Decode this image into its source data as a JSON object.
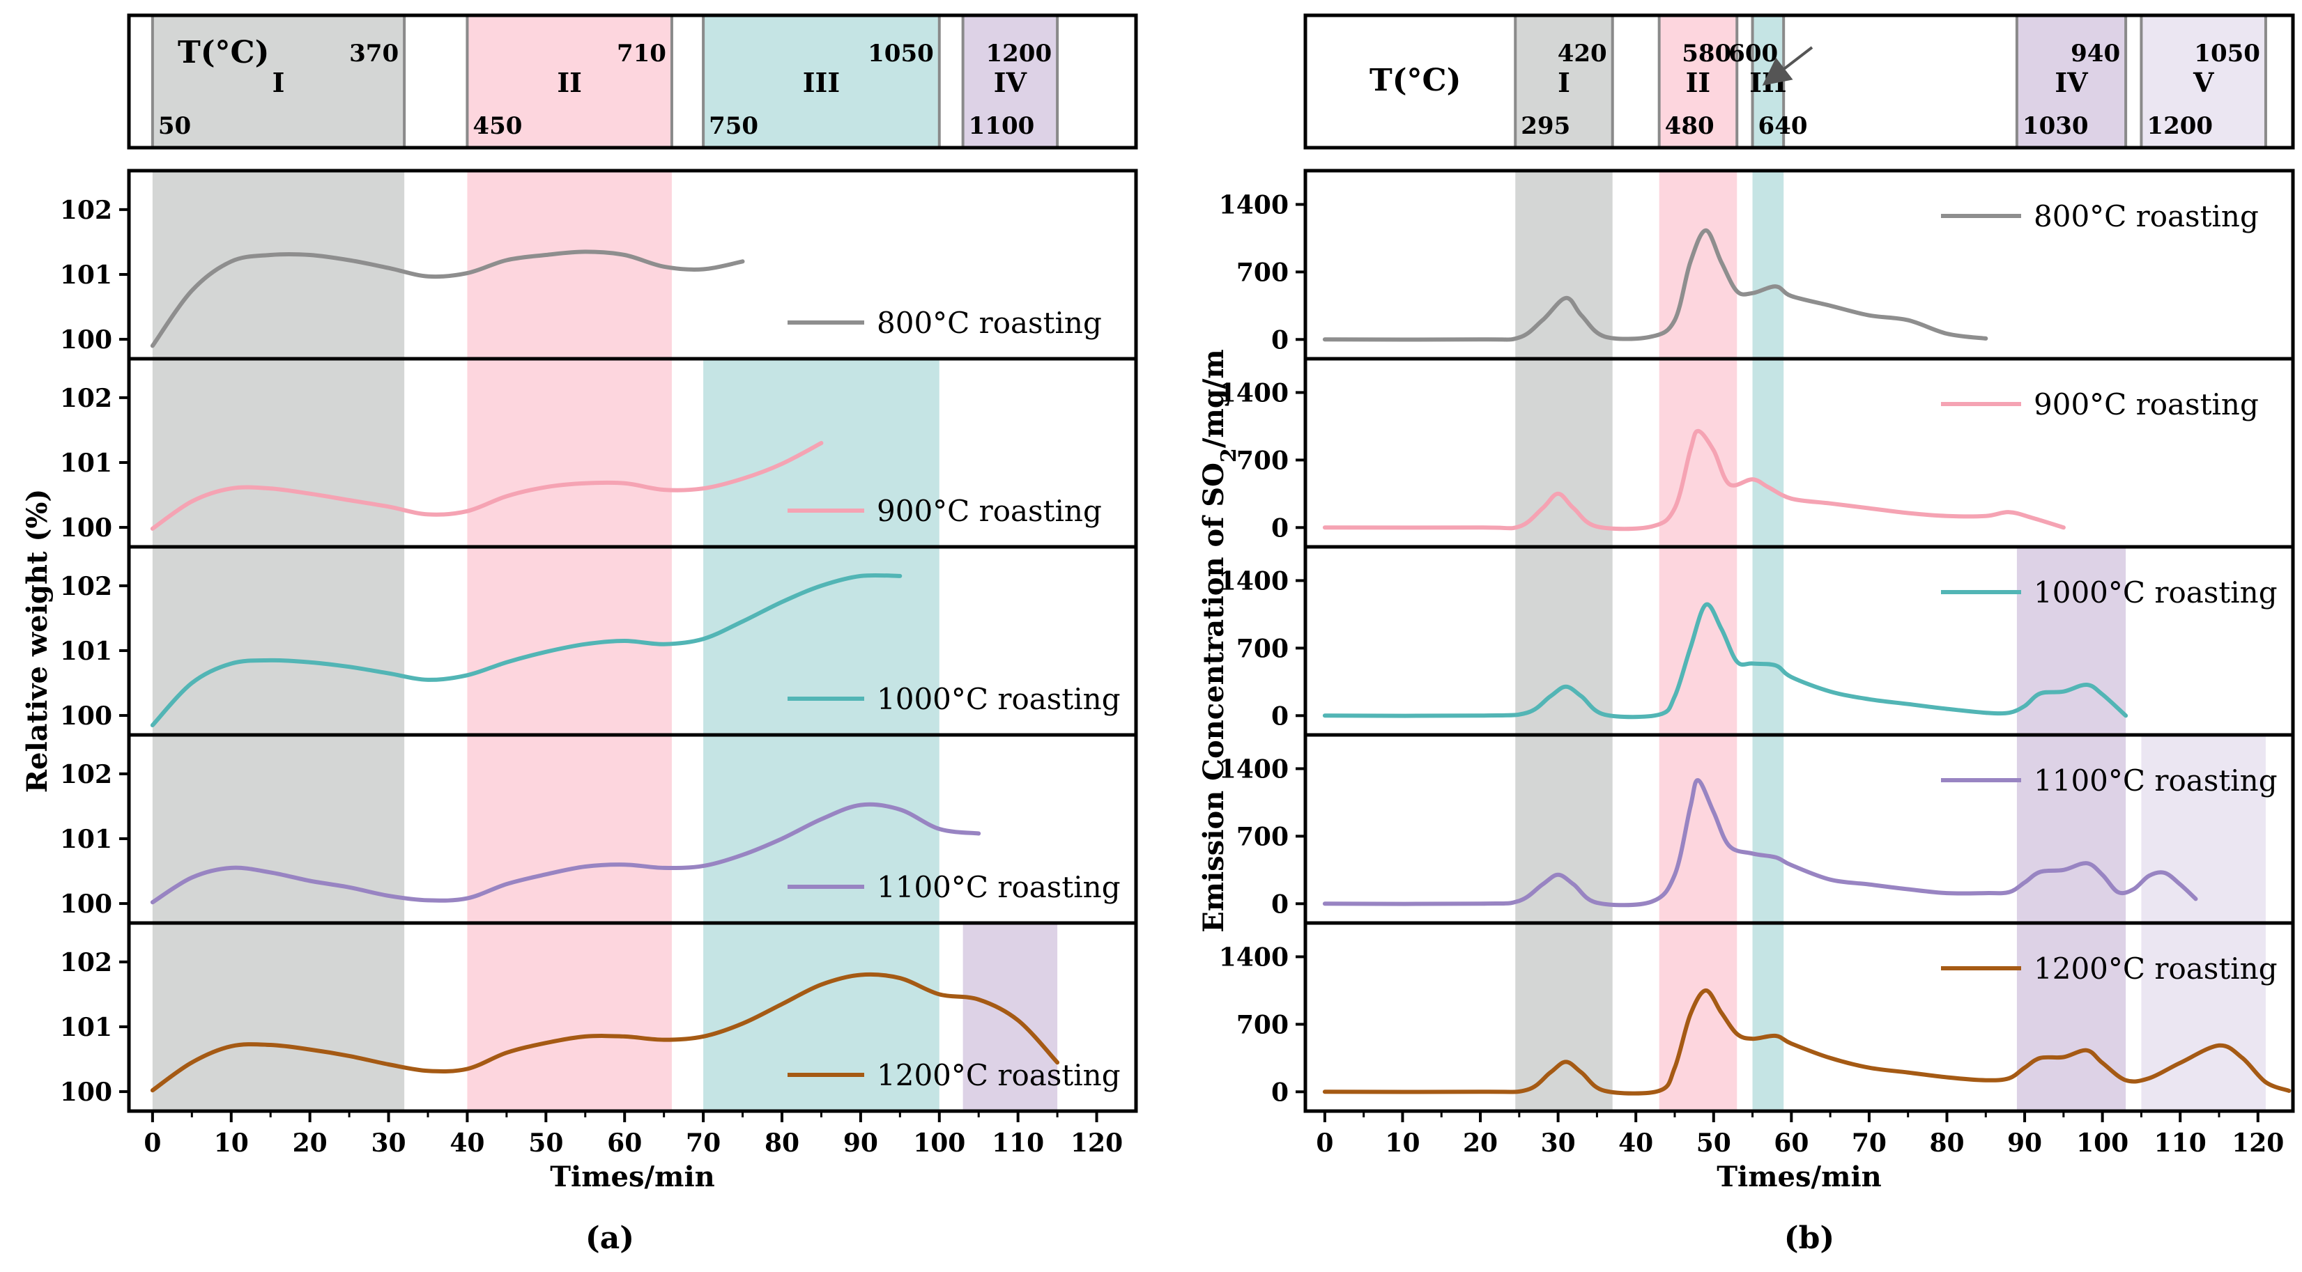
{
  "figure": {
    "label_a": "(a)",
    "label_b": "(b)"
  },
  "colors": {
    "band_I": "#d4d6d5",
    "band_II": "#fdd6de",
    "band_III": "#c5e4e4",
    "band_IV": "#ddd2e6",
    "band_V": "#ebe6f2",
    "s800": "#8e8e8e",
    "s900": "#f5a3b3",
    "s1000": "#52b5b5",
    "s1100": "#9884c2",
    "s1200": "#a55a14"
  },
  "panel_a": {
    "temp_label": "T(°C)",
    "stages": [
      {
        "roman": "I",
        "t_start": "50",
        "t_end": "370",
        "x0": 0,
        "x1": 32,
        "color": "band_I"
      },
      {
        "roman": "II",
        "t_start": "450",
        "t_end": "710",
        "x0": 40,
        "x1": 66,
        "color": "band_II"
      },
      {
        "roman": "III",
        "t_start": "750",
        "t_end": "1050",
        "x0": 70,
        "x1": 100,
        "color": "band_III"
      },
      {
        "roman": "IV",
        "t_start": "1100",
        "t_end": "1200",
        "x0": 103,
        "x1": 115,
        "color": "band_IV"
      }
    ]
  },
  "panel_b": {
    "temp_label": "T(°C)",
    "stages": [
      {
        "roman": "I",
        "t_start": "295",
        "t_end": "420",
        "x0": 24.5,
        "x1": 37,
        "color": "band_I"
      },
      {
        "roman": "II",
        "t_start": "480",
        "t_end": "580",
        "x0": 43,
        "x1": 53,
        "color": "band_II"
      },
      {
        "roman": "III",
        "t_start": "640",
        "t_end": "600",
        "x0": 55,
        "x1": 59,
        "color": "band_III"
      },
      {
        "roman": "IV",
        "t_start": "1030",
        "t_end": "940",
        "x0": 89,
        "x1": 103,
        "color": "band_IV"
      },
      {
        "roman": "V",
        "t_start": "1200",
        "t_end": "1050",
        "x0": 105,
        "x1": 121,
        "color": "band_V"
      }
    ]
  },
  "chart_data": [
    {
      "type": "line",
      "title": "(a)",
      "xlabel": "Times/min",
      "ylabel": "Relative weight (%)",
      "xlim": [
        -3,
        125
      ],
      "xticks": [
        0,
        10,
        20,
        30,
        40,
        50,
        60,
        70,
        80,
        90,
        100,
        110,
        120
      ],
      "ylim": [
        99.7,
        102.6
      ],
      "yticks": [
        100,
        101,
        102
      ],
      "subplots": [
        {
          "name": "800°C roasting",
          "color": "s800",
          "bands": [
            0,
            1
          ],
          "x": [
            0,
            5,
            10,
            15,
            20,
            25,
            30,
            35,
            40,
            45,
            50,
            55,
            60,
            65,
            70,
            75
          ],
          "y": [
            99.9,
            100.75,
            101.2,
            101.3,
            101.3,
            101.22,
            101.1,
            100.97,
            101.02,
            101.22,
            101.3,
            101.35,
            101.3,
            101.12,
            101.08,
            101.2
          ]
        },
        {
          "name": "900°C roasting",
          "color": "s900",
          "bands": [
            0,
            1,
            2
          ],
          "x": [
            0,
            5,
            10,
            15,
            20,
            25,
            30,
            35,
            40,
            45,
            50,
            55,
            60,
            65,
            70,
            75,
            80,
            85
          ],
          "y": [
            99.98,
            100.4,
            100.6,
            100.6,
            100.52,
            100.42,
            100.32,
            100.2,
            100.25,
            100.48,
            100.62,
            100.68,
            100.68,
            100.58,
            100.6,
            100.75,
            100.98,
            101.3
          ]
        },
        {
          "name": "1000°C roasting",
          "color": "s1000",
          "bands": [
            0,
            1,
            2
          ],
          "x": [
            0,
            5,
            10,
            15,
            20,
            25,
            30,
            35,
            40,
            45,
            50,
            55,
            60,
            65,
            70,
            75,
            80,
            85,
            90,
            95
          ],
          "y": [
            99.85,
            100.5,
            100.8,
            100.85,
            100.82,
            100.75,
            100.65,
            100.55,
            100.62,
            100.82,
            100.98,
            101.1,
            101.15,
            101.1,
            101.18,
            101.45,
            101.75,
            102.0,
            102.15,
            102.15
          ]
        },
        {
          "name": "1100°C roasting",
          "color": "s1100",
          "bands": [
            0,
            1,
            2
          ],
          "x": [
            0,
            5,
            10,
            15,
            20,
            25,
            30,
            35,
            40,
            45,
            50,
            55,
            60,
            65,
            70,
            75,
            80,
            85,
            90,
            95,
            100,
            105
          ],
          "y": [
            100.02,
            100.4,
            100.55,
            100.48,
            100.35,
            100.25,
            100.12,
            100.05,
            100.08,
            100.3,
            100.45,
            100.57,
            100.6,
            100.55,
            100.58,
            100.75,
            101.0,
            101.3,
            101.52,
            101.45,
            101.15,
            101.08
          ]
        },
        {
          "name": "1200°C roasting",
          "color": "s1200",
          "bands": [
            0,
            1,
            2,
            3
          ],
          "x": [
            0,
            5,
            10,
            15,
            20,
            25,
            30,
            35,
            40,
            45,
            50,
            55,
            60,
            65,
            70,
            75,
            80,
            85,
            90,
            95,
            100,
            105,
            110,
            115
          ],
          "y": [
            100.02,
            100.45,
            100.7,
            100.72,
            100.65,
            100.55,
            100.42,
            100.32,
            100.35,
            100.6,
            100.75,
            100.85,
            100.85,
            100.8,
            100.85,
            101.05,
            101.35,
            101.65,
            101.8,
            101.75,
            101.5,
            101.42,
            101.1,
            100.45
          ]
        }
      ]
    },
    {
      "type": "line",
      "title": "(b)",
      "xlabel": "Times/min",
      "ylabel": "Emission Concentration of SO",
      "ylabel_sub": "2",
      "ylabel_tail": "/mg/m",
      "xlim": [
        -2.5,
        124.5
      ],
      "xticks": [
        0,
        10,
        20,
        30,
        40,
        50,
        60,
        70,
        80,
        90,
        100,
        110,
        120
      ],
      "ylim": [
        -200,
        1750
      ],
      "yticks": [
        0,
        700,
        1400
      ],
      "subplots": [
        {
          "name": "800°C roasting",
          "color": "s800",
          "bands": [
            0,
            1,
            2
          ],
          "x": [
            0,
            20,
            25,
            28,
            31,
            33,
            36,
            42,
            45,
            47,
            49,
            51,
            53,
            55,
            58,
            60,
            65,
            70,
            75,
            80,
            85
          ],
          "y": [
            0,
            0,
            20,
            200,
            430,
            250,
            30,
            30,
            200,
            800,
            1130,
            800,
            500,
            480,
            550,
            450,
            350,
            250,
            200,
            60,
            10
          ]
        },
        {
          "name": "900°C roasting",
          "color": "s900",
          "bands": [
            0,
            1,
            2
          ],
          "x": [
            0,
            20,
            25,
            28,
            30,
            32,
            35,
            42,
            45,
            47,
            48,
            50,
            52,
            55,
            57,
            60,
            65,
            70,
            75,
            80,
            85,
            88,
            91,
            95
          ],
          "y": [
            0,
            0,
            10,
            200,
            350,
            200,
            10,
            10,
            200,
            800,
            1000,
            800,
            450,
            500,
            420,
            300,
            250,
            200,
            150,
            120,
            120,
            160,
            100,
            0
          ]
        },
        {
          "name": "1000°C roasting",
          "color": "s1000",
          "bands": [
            0,
            1,
            2,
            3
          ],
          "x": [
            0,
            20,
            26,
            29,
            31,
            33,
            36,
            43,
            45,
            47,
            49,
            51,
            53,
            55,
            58,
            60,
            65,
            70,
            75,
            80,
            85,
            88,
            90,
            92,
            95,
            98,
            100,
            103
          ],
          "y": [
            0,
            0,
            30,
            200,
            300,
            200,
            10,
            10,
            200,
            700,
            1150,
            900,
            560,
            540,
            520,
            400,
            250,
            170,
            120,
            70,
            30,
            30,
            100,
            230,
            250,
            320,
            220,
            0
          ]
        },
        {
          "name": "1100°C roasting",
          "color": "s1100",
          "bands": [
            0,
            1,
            2,
            3,
            4
          ],
          "x": [
            0,
            20,
            25,
            28,
            30,
            32,
            35,
            42,
            45,
            47,
            48,
            50,
            52,
            55,
            58,
            60,
            65,
            70,
            75,
            80,
            85,
            88,
            90,
            92,
            95,
            98,
            100,
            102,
            104,
            106,
            108,
            110,
            112
          ],
          "y": [
            0,
            0,
            30,
            200,
            300,
            200,
            10,
            20,
            300,
            1000,
            1280,
            950,
            600,
            520,
            480,
            400,
            250,
            200,
            150,
            110,
            110,
            120,
            220,
            330,
            350,
            420,
            300,
            120,
            150,
            290,
            320,
            200,
            50
          ]
        },
        {
          "name": "1200°C roasting",
          "color": "s1200",
          "bands": [
            0,
            1,
            2,
            3,
            4
          ],
          "x": [
            0,
            20,
            26,
            29,
            31,
            33,
            36,
            43,
            45,
            47,
            49,
            51,
            53,
            55,
            58,
            60,
            65,
            70,
            75,
            80,
            85,
            88,
            90,
            92,
            95,
            98,
            100,
            103,
            106,
            110,
            115,
            118,
            121,
            124
          ],
          "y": [
            0,
            0,
            20,
            200,
            310,
            200,
            10,
            10,
            250,
            800,
            1050,
            820,
            600,
            550,
            580,
            500,
            350,
            250,
            200,
            150,
            120,
            140,
            250,
            350,
            360,
            430,
            300,
            120,
            140,
            300,
            480,
            350,
            100,
            10
          ]
        }
      ]
    }
  ]
}
